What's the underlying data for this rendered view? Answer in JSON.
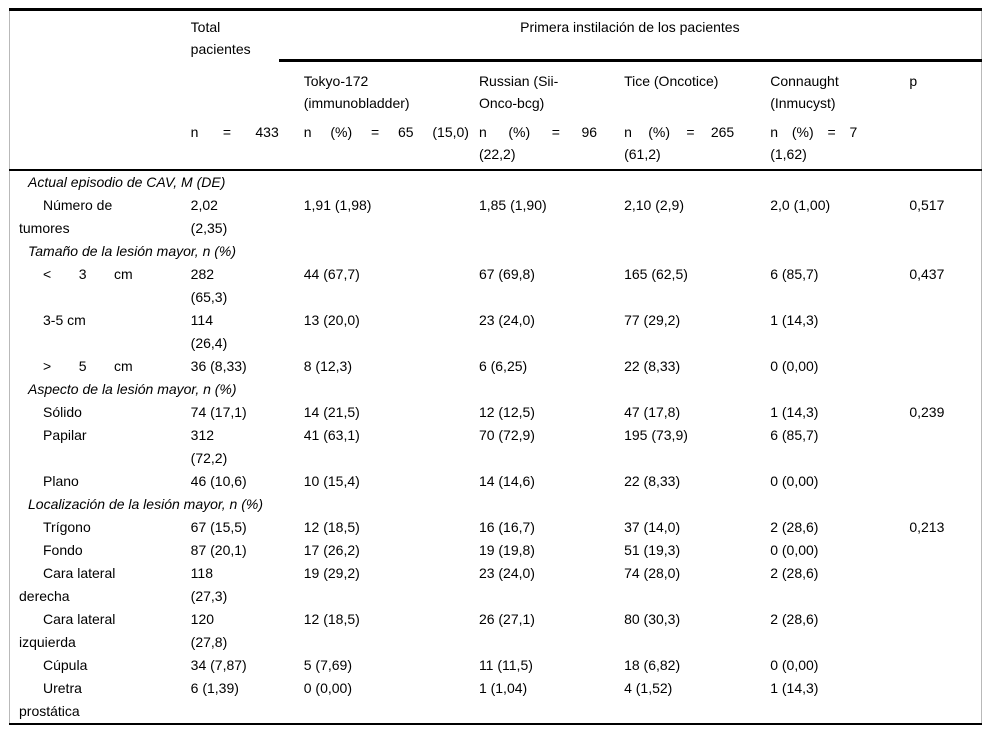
{
  "table": {
    "header": {
      "total": "Total\npacientes",
      "group": "Primera instilación de los pacientes",
      "strains": {
        "tokyo": "Tokyo-172\n(immunobladder)",
        "russian": "Russian (Sii-\nOnco-bcg)",
        "tice": "Tice (Oncotice)",
        "connaught": "Connaught\n(Inmucyst)",
        "p": "p"
      },
      "counts": {
        "total": "n = 433",
        "tokyo": "n (%) = 65 (15,0)",
        "russian": "n (%) = 96\n(22,2)",
        "tice": "n (%) = 265\n(61,2)",
        "connaught": "n (%) = 7\n(1,62)"
      }
    },
    "sections": [
      {
        "title": "Actual episodio de CAV, M (DE)",
        "rows": [
          {
            "label": "Número de\ntumores",
            "total": "2,02\n(2,35)",
            "tokyo": "1,91 (1,98)",
            "russian": "1,85 (1,90)",
            "tice": "2,10 (2,9)",
            "connaught": "2,0 (1,00)",
            "p": "0,517"
          }
        ]
      },
      {
        "title": "Tamaño de la lesión mayor, n (%)",
        "rows": [
          {
            "label": "< 3 cm",
            "spread": true,
            "total": "282\n(65,3)",
            "tokyo": "44 (67,7)",
            "russian": "67 (69,8)",
            "tice": "165 (62,5)",
            "connaught": "6 (85,7)",
            "p": "0,437"
          },
          {
            "label": "3-5 cm",
            "total": "114\n(26,4)",
            "tokyo": "13 (20,0)",
            "russian": "23 (24,0)",
            "tice": "77 (29,2)",
            "connaught": "1 (14,3)",
            "p": ""
          },
          {
            "label": "> 5 cm",
            "spread": true,
            "total": "36 (8,33)",
            "tokyo": "8 (12,3)",
            "russian": "6 (6,25)",
            "tice": "22 (8,33)",
            "connaught": "0 (0,00)",
            "p": ""
          }
        ]
      },
      {
        "title": "Aspecto de la lesión mayor, n (%)",
        "rows": [
          {
            "label": "Sólido",
            "total": "74 (17,1)",
            "tokyo": "14 (21,5)",
            "russian": "12 (12,5)",
            "tice": "47 (17,8)",
            "connaught": "1 (14,3)",
            "p": "0,239"
          },
          {
            "label": "Papilar",
            "total": "312\n(72,2)",
            "tokyo": "41 (63,1)",
            "russian": "70 (72,9)",
            "tice": "195 (73,9)",
            "connaught": "6 (85,7)",
            "p": ""
          },
          {
            "label": "Plano",
            "total": "46 (10,6)",
            "tokyo": "10 (15,4)",
            "russian": "14 (14,6)",
            "tice": "22 (8,33)",
            "connaught": "0 (0,00)",
            "p": ""
          }
        ]
      },
      {
        "title": "Localización de la lesión mayor, n (%)",
        "rows": [
          {
            "label": "Trígono",
            "total": "67 (15,5)",
            "tokyo": "12 (18,5)",
            "russian": "16 (16,7)",
            "tice": "37 (14,0)",
            "connaught": "2 (28,6)",
            "p": "0,213"
          },
          {
            "label": "Fondo",
            "total": "87 (20,1)",
            "tokyo": "17 (26,2)",
            "russian": "19 (19,8)",
            "tice": "51 (19,3)",
            "connaught": "0 (0,00)",
            "p": ""
          },
          {
            "label": "Cara lateral\nderecha",
            "total": "118\n(27,3)",
            "tokyo": "19 (29,2)",
            "russian": "23 (24,0)",
            "tice": "74 (28,0)",
            "connaught": "2 (28,6)",
            "p": ""
          },
          {
            "label": "Cara lateral\nizquierda",
            "total": "120\n(27,8)",
            "tokyo": "12 (18,5)",
            "russian": "26 (27,1)",
            "tice": "80 (30,3)",
            "connaught": "2 (28,6)",
            "p": ""
          },
          {
            "label": "Cúpula",
            "total": "34 (7,87)",
            "tokyo": "5 (7,69)",
            "russian": "11 (11,5)",
            "tice": "18 (6,82)",
            "connaught": "0 (0,00)",
            "p": ""
          },
          {
            "label": "Uretra\nprostática",
            "total": "6 (1,39)",
            "tokyo": "0 (0,00)",
            "russian": "1 (1,04)",
            "tice": "4 (1,52)",
            "connaught": "1 (14,3)",
            "p": ""
          }
        ]
      }
    ]
  }
}
